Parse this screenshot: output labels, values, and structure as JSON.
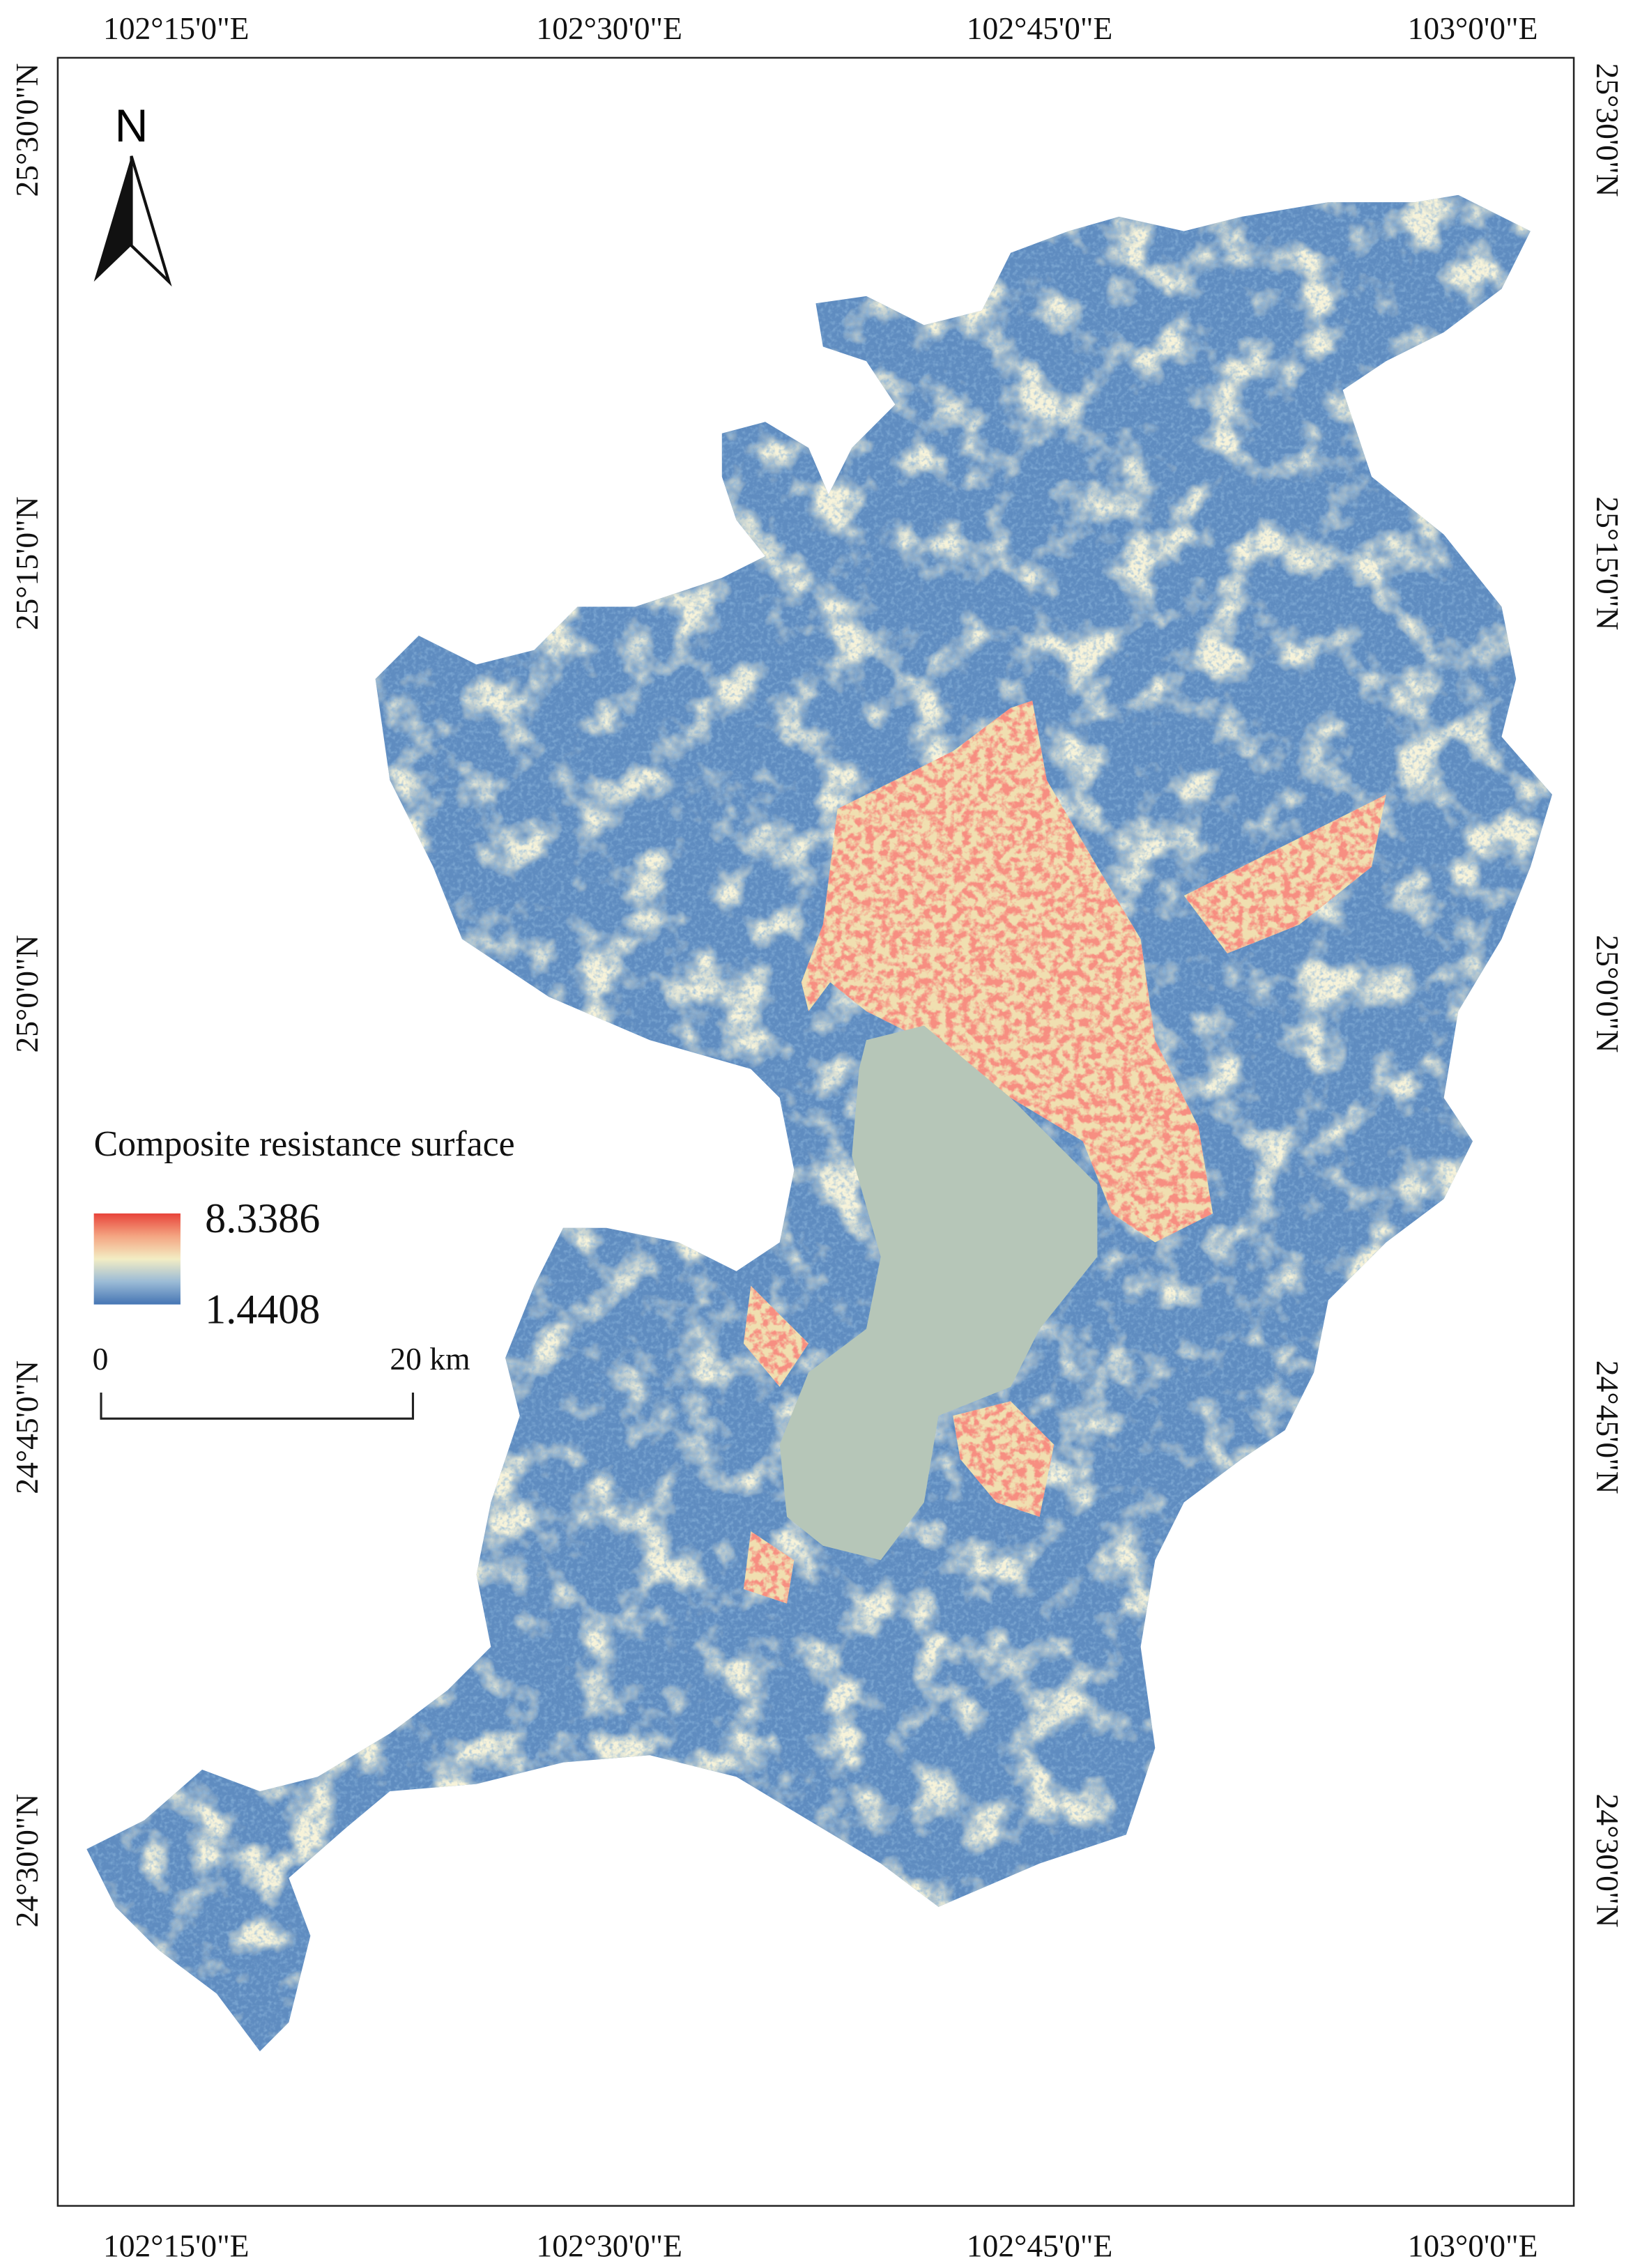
{
  "graticule": {
    "longitudes": [
      "102°15'0\"E",
      "102°30'0\"E",
      "102°45'0\"E",
      "103°0'0\"E"
    ],
    "latitudes": [
      "25°30'0\"N",
      "25°15'0\"N",
      "25°0'0\"N",
      "24°45'0\"N",
      "24°30'0\"N"
    ]
  },
  "north_arrow": {
    "label": "N"
  },
  "legend": {
    "title": "Composite resistance surface",
    "max": "8.3386",
    "min": "1.4408"
  },
  "scale_bar": {
    "start": "0",
    "end": "20 km"
  }
}
